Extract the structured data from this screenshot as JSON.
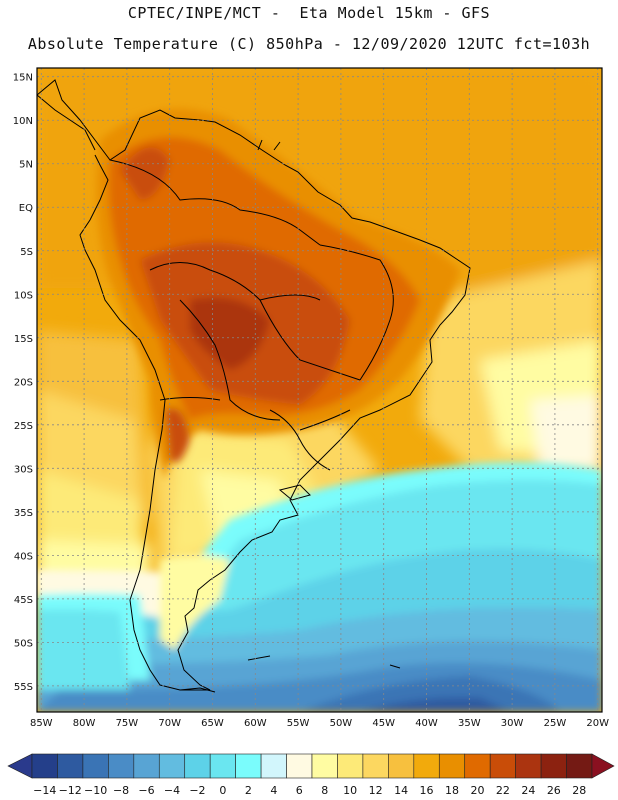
{
  "header": {
    "line1": "CPTEC/INPE/MCT -  Eta Model 15km - GFS",
    "line2": "Absolute Temperature (C) 850hPa - 12/09/2020 12UTC fct=103h"
  },
  "map": {
    "lat_labels": [
      "15N",
      "10N",
      "5N",
      "EQ",
      "5S",
      "10S",
      "15S",
      "20S",
      "25S",
      "30S",
      "35S",
      "40S",
      "45S",
      "50S",
      "55S"
    ],
    "lon_labels": [
      "85W",
      "80W",
      "75W",
      "70W",
      "65W",
      "60W",
      "55W",
      "50W",
      "45W",
      "40W",
      "35W",
      "30W",
      "25W",
      "20W"
    ],
    "lat_range": [
      16,
      -58
    ],
    "lon_range": [
      -85.5,
      -19.5
    ]
  },
  "colorbar": {
    "labels": [
      "-14",
      "-12",
      "-10",
      "-8",
      "-6",
      "-4",
      "-2",
      "0",
      "2",
      "4",
      "6",
      "8",
      "10",
      "12",
      "14",
      "16",
      "18",
      "20",
      "22",
      "24",
      "26",
      "28"
    ],
    "colors": [
      "#243f8a",
      "#2e5aa0",
      "#3a74b5",
      "#4a8cc6",
      "#58a4d4",
      "#62bce0",
      "#5dd2e8",
      "#6ae6f0",
      "#7afcfc",
      "#d2f6fc",
      "#fffae2",
      "#fffca2",
      "#fdea78",
      "#fcd760",
      "#f7c03e",
      "#f2aa0c",
      "#e98f00",
      "#e06a00",
      "#c94d08",
      "#ab3410",
      "#8c2210",
      "#741a14"
    ],
    "under_color": "#2a3a8c",
    "over_color": "#8a1020"
  }
}
